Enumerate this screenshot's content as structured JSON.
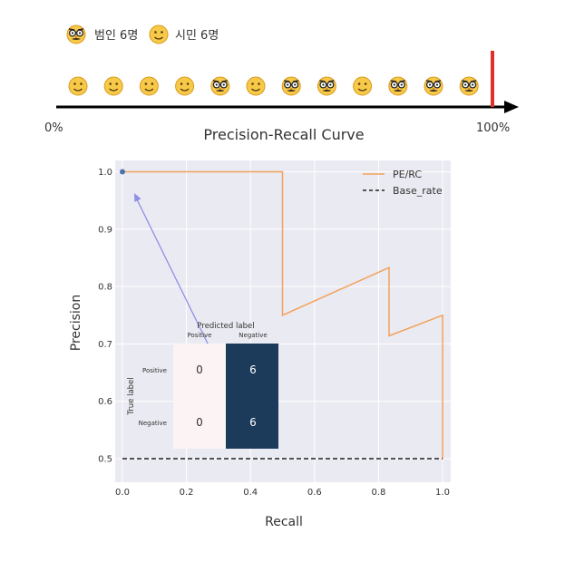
{
  "legend_top": {
    "criminal_label": "범인 6명",
    "citizen_label": "시민 6명"
  },
  "threshold_bar": {
    "start_label": "0%",
    "end_label": "100%",
    "marker_position": 1.0,
    "people": [
      "citizen",
      "citizen",
      "citizen",
      "citizen",
      "criminal",
      "citizen",
      "criminal",
      "criminal",
      "citizen",
      "criminal",
      "criminal",
      "criminal"
    ]
  },
  "chart_data": {
    "type": "line",
    "title": "Precision-Recall Curve",
    "xlabel": "Recall",
    "ylabel": "Precision",
    "xlim": [
      0,
      1
    ],
    "ylim": [
      0.47,
      1.02
    ],
    "xticks": [
      "0.0",
      "0.2",
      "0.4",
      "0.6",
      "0.8",
      "1.0"
    ],
    "yticks": [
      "0.5",
      "0.6",
      "0.7",
      "0.8",
      "0.9",
      "1.0"
    ],
    "grid": true,
    "legend": "top-right",
    "series": [
      {
        "name": "PE/RC",
        "color": "#f4a15a",
        "points": [
          [
            0,
            1.0
          ],
          [
            0.5,
            1.0
          ],
          [
            0.5,
            0.75
          ],
          [
            0.833,
            0.833
          ],
          [
            0.833,
            0.714
          ],
          [
            1.0,
            0.75
          ],
          [
            1.0,
            0.5
          ]
        ]
      },
      {
        "name": "Base_rate",
        "color": "#222222",
        "style": "dashed",
        "points": [
          [
            0,
            0.5
          ],
          [
            1.0,
            0.5
          ]
        ]
      }
    ],
    "current_point": [
      0,
      1.0
    ],
    "confusion_matrix": {
      "title": "Predicted label",
      "col_labels": [
        "Positive",
        "Negative"
      ],
      "row_title": "True label",
      "row_labels": [
        "Positive",
        "Negative"
      ],
      "cells": [
        [
          "0",
          "6"
        ],
        [
          "0",
          "6"
        ]
      ],
      "colors": [
        [
          "#fbf3f4",
          "#1c3a5a"
        ],
        [
          "#fbf3f4",
          "#1c3a5a"
        ]
      ]
    }
  }
}
